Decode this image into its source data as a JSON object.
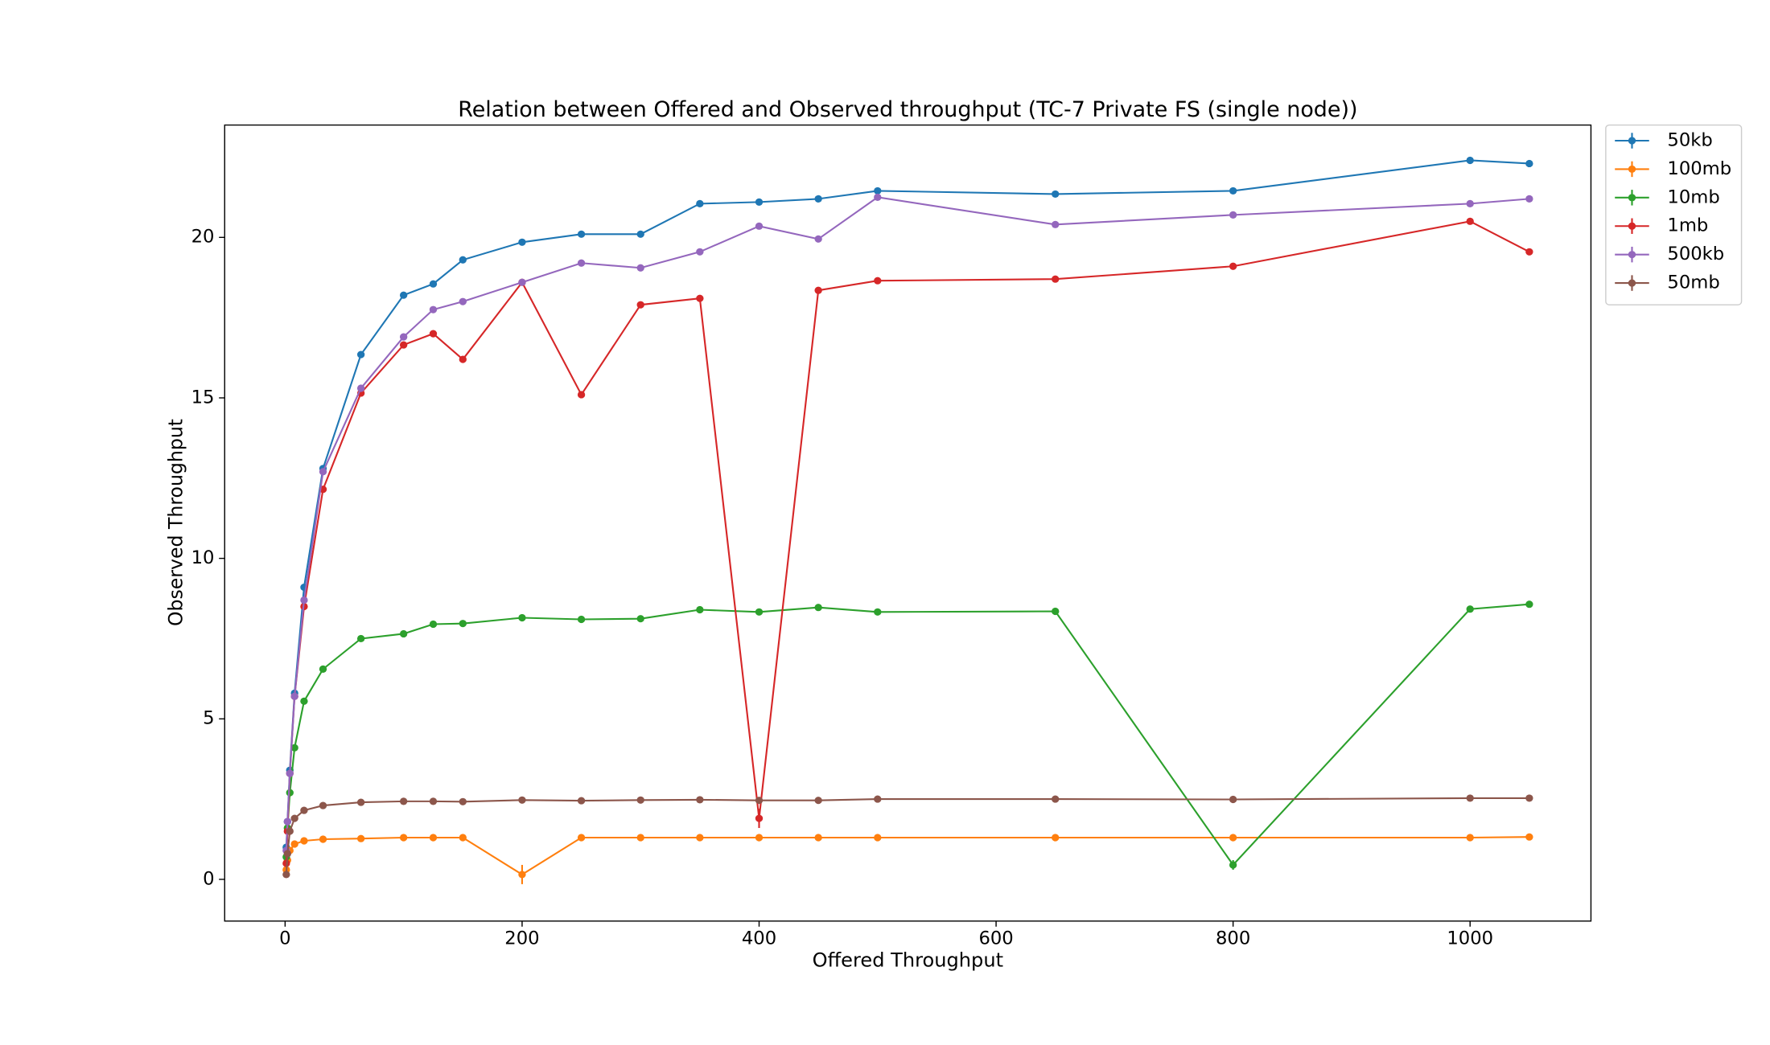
{
  "chart_data": {
    "type": "line",
    "title": "Relation between Offered and Observed throughput (TC-7  Private FS (single node))",
    "xlabel": "Offered Throughput",
    "ylabel": "Observed Throughput",
    "x": [
      1,
      2,
      4,
      8,
      16,
      32,
      64,
      100,
      125,
      150,
      200,
      250,
      300,
      350,
      400,
      450,
      500,
      650,
      800,
      1000,
      1050
    ],
    "xlim": [
      -51,
      1102
    ],
    "xticks": [
      0,
      200,
      400,
      600,
      800,
      1000
    ],
    "ylim": [
      -1.3,
      23.5
    ],
    "yticks": [
      0,
      5,
      10,
      15,
      20
    ],
    "legend": "outside upper right",
    "series": [
      {
        "name": "50kb",
        "color": "#1f77b4",
        "values": [
          1.0,
          1.8,
          3.4,
          5.8,
          9.1,
          12.8,
          16.35,
          18.2,
          18.55,
          19.3,
          19.85,
          20.1,
          20.1,
          21.05,
          21.1,
          21.2,
          21.45,
          21.35,
          21.45,
          22.4,
          22.3
        ]
      },
      {
        "name": "100mb",
        "color": "#ff7f0e",
        "values": [
          0.3,
          0.6,
          0.9,
          1.1,
          1.2,
          1.25,
          1.27,
          1.3,
          1.3,
          1.3,
          0.15,
          1.3,
          1.3,
          1.3,
          1.3,
          1.3,
          1.3,
          1.3,
          1.3,
          1.3,
          1.32
        ],
        "errors": [
          0,
          0,
          0,
          0,
          0,
          0,
          0,
          0,
          0,
          0,
          0.3,
          0,
          0,
          0,
          0,
          0,
          0,
          0,
          0,
          0,
          0
        ]
      },
      {
        "name": "10mb",
        "color": "#2ca02c",
        "values": [
          0.7,
          1.6,
          2.7,
          4.1,
          5.55,
          6.55,
          7.5,
          7.65,
          7.95,
          7.97,
          8.15,
          8.1,
          8.12,
          8.4,
          8.33,
          8.47,
          8.33,
          8.35,
          0.45,
          8.42,
          8.57
        ],
        "errors": [
          0,
          0,
          0,
          0,
          0,
          0,
          0,
          0,
          0,
          0,
          0,
          0,
          0,
          0,
          0,
          0,
          0,
          0,
          0.15,
          0,
          0
        ]
      },
      {
        "name": "1mb",
        "color": "#d62728",
        "values": [
          0.5,
          1.5,
          3.3,
          5.7,
          8.5,
          12.15,
          15.15,
          16.65,
          17.0,
          16.2,
          18.6,
          15.1,
          17.9,
          18.1,
          1.9,
          18.35,
          18.65,
          18.7,
          19.1,
          20.5,
          19.55
        ],
        "errors": [
          0,
          0,
          0,
          0,
          0,
          0,
          0,
          0,
          0,
          0,
          0,
          0,
          0,
          0,
          0.3,
          0,
          0,
          0,
          0,
          0,
          0
        ]
      },
      {
        "name": "500kb",
        "color": "#9467bd",
        "values": [
          0.9,
          1.8,
          3.3,
          5.7,
          8.7,
          12.7,
          15.3,
          16.9,
          17.75,
          18.0,
          18.6,
          19.2,
          19.05,
          19.55,
          20.35,
          19.95,
          21.25,
          20.4,
          20.7,
          21.05,
          21.2
        ]
      },
      {
        "name": "50mb",
        "color": "#8c564b",
        "values": [
          0.15,
          0.8,
          1.5,
          1.9,
          2.15,
          2.3,
          2.4,
          2.43,
          2.43,
          2.42,
          2.47,
          2.45,
          2.47,
          2.48,
          2.46,
          2.46,
          2.5,
          2.5,
          2.49,
          2.53,
          2.53
        ]
      }
    ]
  }
}
